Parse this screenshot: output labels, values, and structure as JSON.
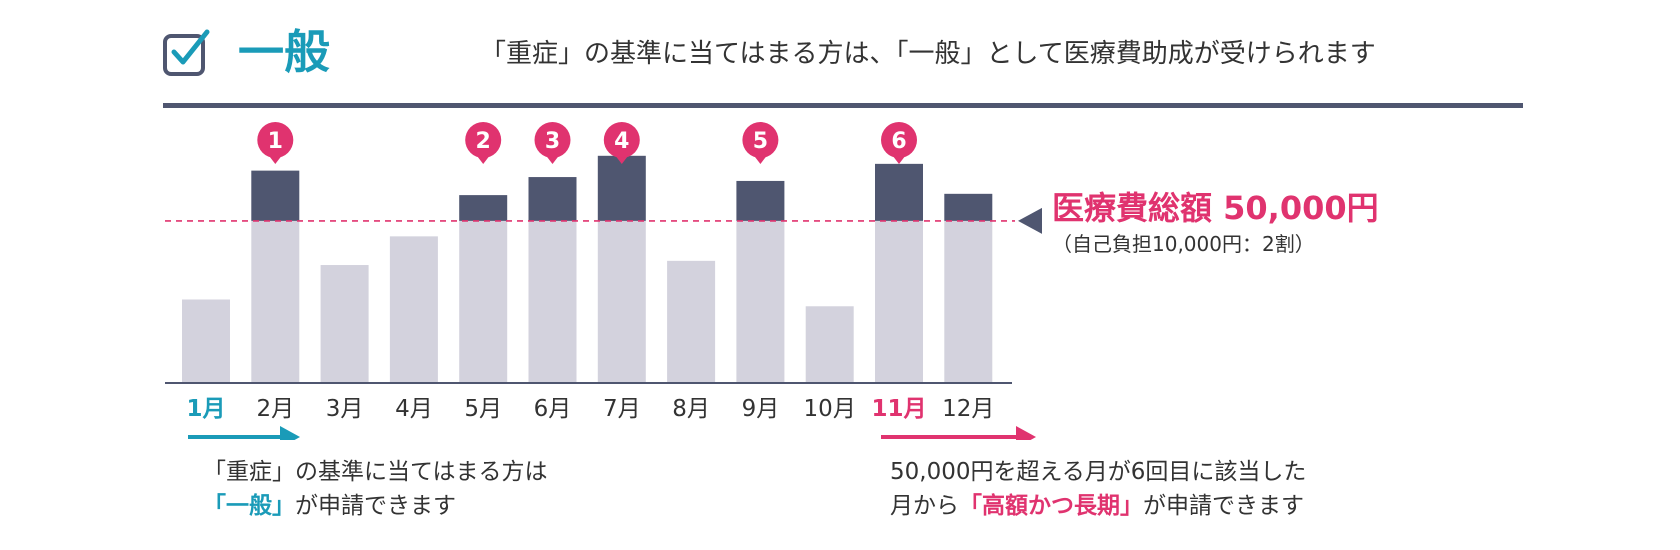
{
  "header": {
    "title": "一般",
    "note": "「重症」の基準に当てはまる方は、「一般」として医療費助成が受けられます"
  },
  "threshold_label": "医療費総額 50,000円",
  "threshold_sub": "（自己負担10,000円：2割）",
  "notes": {
    "left_line1": "「重症」の基準に当てはまる方は",
    "left_emph": "「一般」",
    "left_rest": "が申請できます",
    "right_line1": "50,000円を超える月が6回目に該当した",
    "right_pre": "月から",
    "right_emph": "「高額かつ長期」",
    "right_rest": "が申請できます"
  },
  "colors": {
    "teal": "#1a9bb8",
    "pink": "#e0336f",
    "navy": "#4f5670",
    "bar_light": "#d3d2dd"
  },
  "icons": [
    "checkbox-icon",
    "arrow-right-icon",
    "pin-marker-icon",
    "triangle-pointer-icon"
  ],
  "chart_data": {
    "type": "bar",
    "categories": [
      "1月",
      "2月",
      "3月",
      "4月",
      "5月",
      "6月",
      "7月",
      "8月",
      "9月",
      "10月",
      "11月",
      "12月"
    ],
    "values": [
      25600,
      65600,
      36300,
      45200,
      58000,
      63600,
      70200,
      37600,
      62400,
      23500,
      67700,
      58400
    ],
    "threshold": 50000,
    "ylim": [
      0,
      72000
    ],
    "highlighted_categories": {
      "1月": "teal",
      "11月": "pink"
    },
    "markers": [
      {
        "category": "2月",
        "label": "1"
      },
      {
        "category": "5月",
        "label": "2"
      },
      {
        "category": "6月",
        "label": "3"
      },
      {
        "category": "7月",
        "label": "4"
      },
      {
        "category": "9月",
        "label": "5"
      },
      {
        "category": "11月",
        "label": "6"
      }
    ],
    "title": "",
    "xlabel": "",
    "ylabel": "",
    "grid": false,
    "legend": "none"
  }
}
